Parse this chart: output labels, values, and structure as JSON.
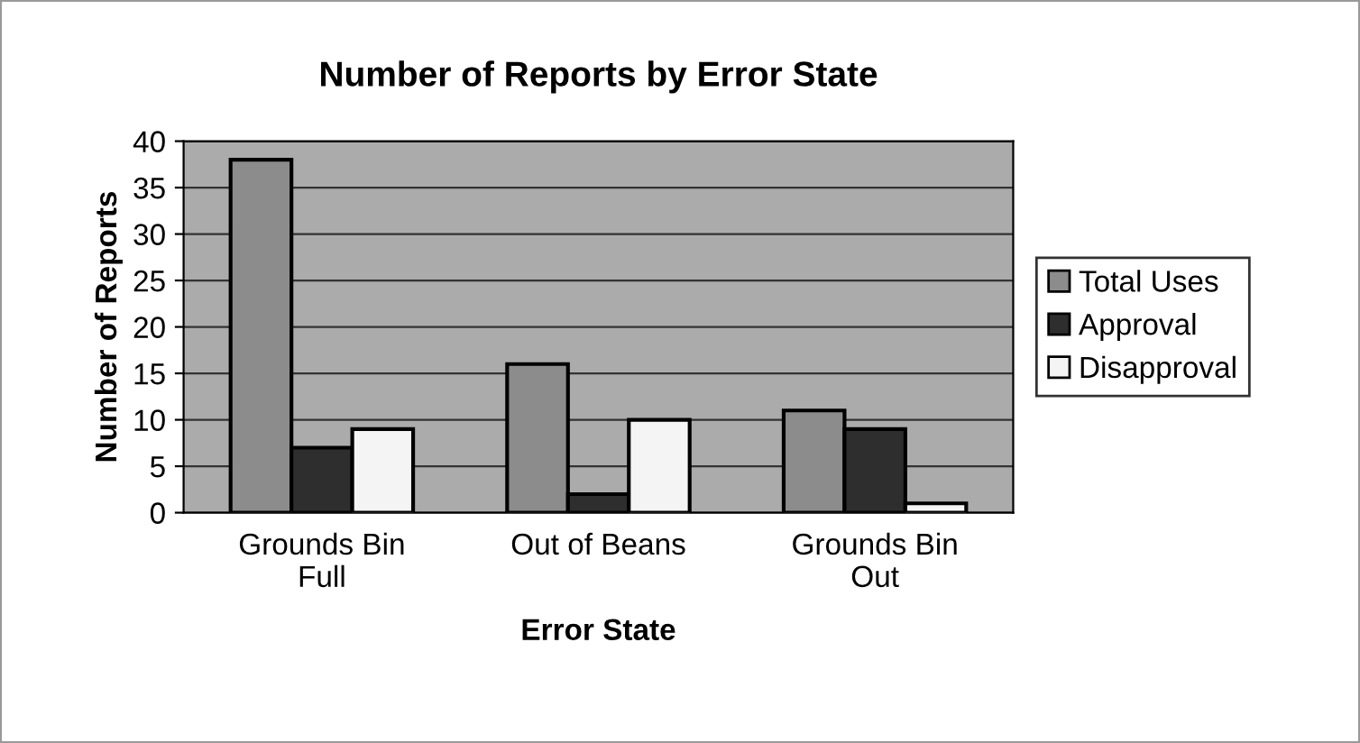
{
  "chart_data": {
    "type": "bar",
    "title": "Number of Reports by Error State",
    "xlabel": "Error State",
    "ylabel": "Number of Reports",
    "categories": [
      "Grounds Bin\nFull",
      "Out of Beans",
      "Grounds Bin\nOut"
    ],
    "series": [
      {
        "name": "Total Uses",
        "color": "#8c8c8c",
        "values": [
          38,
          16,
          11
        ]
      },
      {
        "name": "Approval",
        "color": "#2e2e2e",
        "values": [
          7,
          2,
          9
        ]
      },
      {
        "name": "Disapproval",
        "color": "#f4f4f4",
        "values": [
          9,
          10,
          1
        ]
      }
    ],
    "ylim": [
      0,
      40
    ],
    "yticks": [
      0,
      5,
      10,
      15,
      20,
      25,
      30,
      35,
      40
    ],
    "grid": "y",
    "legend": "right"
  }
}
